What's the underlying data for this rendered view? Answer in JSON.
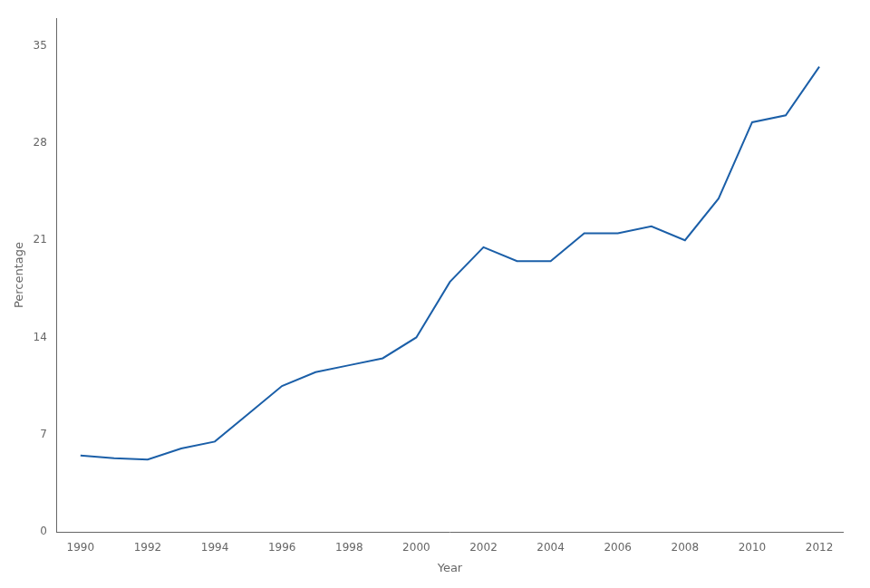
{
  "chart_data": {
    "type": "line",
    "x": [
      1990,
      1991,
      1992,
      1993,
      1994,
      1995,
      1996,
      1997,
      1998,
      1999,
      2000,
      2001,
      2002,
      2003,
      2004,
      2005,
      2006,
      2007,
      2008,
      2009,
      2010,
      2011,
      2012
    ],
    "values": [
      5.5,
      5.3,
      5.2,
      6.0,
      6.5,
      8.5,
      10.5,
      11.5,
      12.0,
      12.5,
      14.0,
      18.0,
      20.5,
      19.5,
      19.5,
      21.5,
      21.5,
      22.0,
      21.0,
      24.0,
      29.5,
      30.0,
      33.5
    ],
    "color": "#1b5fa8",
    "xlabel": "Year",
    "ylabel": "Percentage",
    "xlim": [
      1989.3,
      2012.7
    ],
    "ylim": [
      0,
      37
    ],
    "xticks": [
      1990,
      1992,
      1994,
      1996,
      1998,
      2000,
      2002,
      2004,
      2006,
      2008,
      2010,
      2012
    ],
    "yticks": [
      0,
      7,
      14,
      21,
      28,
      35
    ],
    "grid": false
  }
}
